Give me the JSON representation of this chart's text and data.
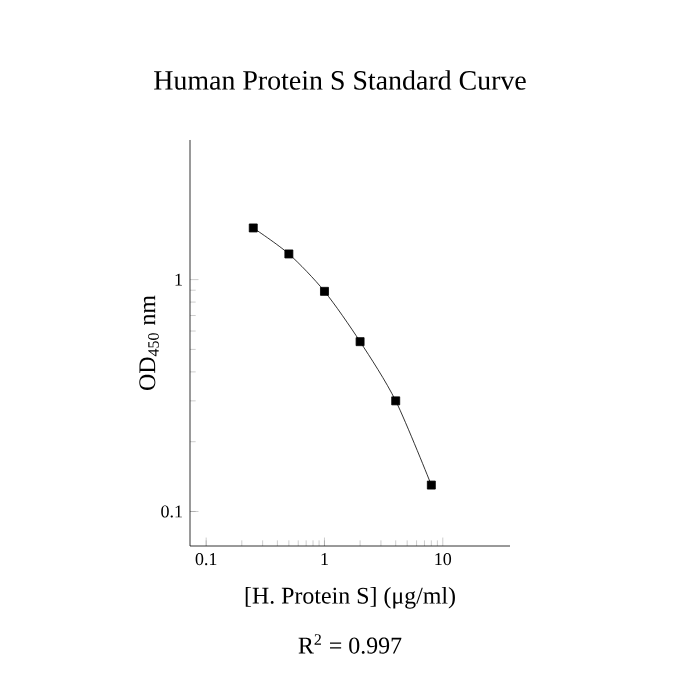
{
  "chart_data": {
    "type": "line",
    "title": "Human Protein S Standard Curve",
    "xlabel": "[H. Protein S] (μg/ml)",
    "ylabel": "OD$_{450}$ nm",
    "annotations": [
      "R$^{2}$ = 0.997"
    ],
    "x": [
      0.25,
      0.5,
      1,
      2,
      4,
      8
    ],
    "series": [
      {
        "color": "#000000",
        "values": [
          1.67,
          1.29,
          0.89,
          0.54,
          0.3,
          0.13
        ]
      }
    ],
    "log": "xy",
    "xlim": [
      0.073,
      37
    ],
    "ylim": [
      0.071,
      4
    ],
    "xticks": [
      0.1,
      1,
      10
    ],
    "yticks": [
      0.1,
      1
    ],
    "marker": "square",
    "line_style": "solid",
    "grid": false
  }
}
